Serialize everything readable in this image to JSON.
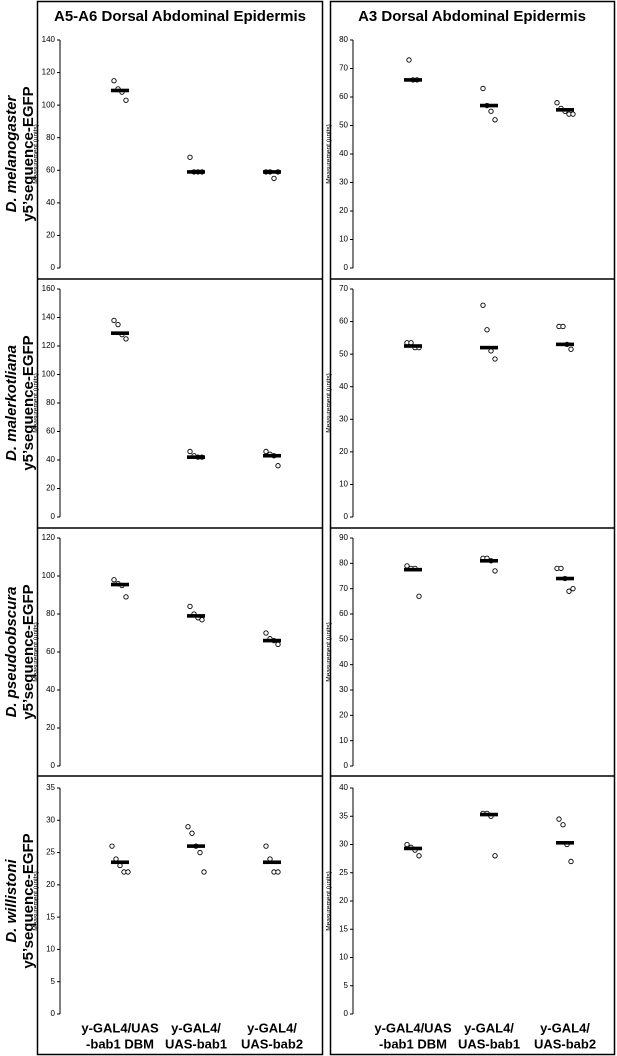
{
  "columns": [
    "A5-A6 Dorsal Abdominal Epidermis",
    "A3 Dorsal Abdominal Epidermis"
  ],
  "rows": [
    {
      "species": "D. melanogaster",
      "construct": "y5’sequence-EGFP"
    },
    {
      "species": "D. malerkotliana",
      "construct": "y5’sequence-EGFP"
    },
    {
      "species": "D. pseudoobscura",
      "construct": "y5’sequence-EGFP"
    },
    {
      "species": "D. willistoni",
      "construct": "y5’sequence-EGFP"
    }
  ],
  "chart_data": [
    {
      "type": "dot",
      "ylabel": "Measurement (units)",
      "ylim": [
        0,
        140
      ],
      "yticks": [
        0,
        20,
        40,
        60,
        80,
        100,
        120,
        140
      ],
      "groups": [
        {
          "points": [
            115,
            110,
            108,
            103
          ],
          "mean": 109
        },
        {
          "points": [
            68,
            59,
            59,
            59
          ],
          "mean": 59
        },
        {
          "points": [
            59,
            59,
            55,
            59
          ],
          "mean": 59
        }
      ]
    },
    {
      "type": "dot",
      "ylabel": "Measurement (units)",
      "ylim": [
        0,
        80
      ],
      "yticks": [
        0,
        10,
        20,
        30,
        40,
        50,
        60,
        70,
        80
      ],
      "groups": [
        {
          "points": [
            73,
            66,
            66
          ],
          "mean": 66
        },
        {
          "points": [
            63,
            57,
            55,
            52
          ],
          "mean": 57
        },
        {
          "points": [
            58,
            56,
            55,
            54,
            54
          ],
          "mean": 55.5
        }
      ]
    },
    {
      "type": "dot",
      "ylabel": "Measurement (units)",
      "ylim": [
        0,
        160
      ],
      "yticks": [
        0,
        20,
        40,
        60,
        80,
        100,
        120,
        140,
        160
      ],
      "groups": [
        {
          "points": [
            138,
            135,
            128,
            125
          ],
          "mean": 129
        },
        {
          "points": [
            46,
            43,
            42,
            42
          ],
          "mean": 42
        },
        {
          "points": [
            46,
            44,
            43,
            36
          ],
          "mean": 43
        }
      ]
    },
    {
      "type": "dot",
      "ylabel": "Measurement (units)",
      "ylim": [
        0,
        70
      ],
      "yticks": [
        0,
        10,
        20,
        30,
        40,
        50,
        60,
        70
      ],
      "groups": [
        {
          "points": [
            53.5,
            53.5,
            52,
            52
          ],
          "mean": 52.5
        },
        {
          "points": [
            65,
            57.5,
            51,
            48.5
          ],
          "mean": 52
        },
        {
          "points": [
            58.5,
            58.5,
            53,
            51.5
          ],
          "mean": 53
        }
      ]
    },
    {
      "type": "dot",
      "ylabel": "Measurement (units)",
      "ylim": [
        0,
        120
      ],
      "yticks": [
        0,
        20,
        40,
        60,
        80,
        100,
        120
      ],
      "groups": [
        {
          "points": [
            98,
            96,
            95,
            89
          ],
          "mean": 95.5
        },
        {
          "points": [
            84,
            80,
            78,
            77
          ],
          "mean": 79
        },
        {
          "points": [
            70,
            67,
            66,
            64
          ],
          "mean": 66
        }
      ]
    },
    {
      "type": "dot",
      "ylabel": "Measurement (units)",
      "ylim": [
        0,
        90
      ],
      "yticks": [
        0,
        10,
        20,
        30,
        40,
        50,
        60,
        70,
        80,
        90
      ],
      "groups": [
        {
          "points": [
            79,
            78,
            78,
            67
          ],
          "mean": 77.5
        },
        {
          "points": [
            82,
            82,
            81,
            77
          ],
          "mean": 81
        },
        {
          "points": [
            78,
            78,
            74,
            69,
            70
          ],
          "mean": 74
        }
      ]
    },
    {
      "type": "dot",
      "ylabel": "Measurement (units)",
      "ylim": [
        0,
        35
      ],
      "yticks": [
        0,
        5,
        10,
        15,
        20,
        25,
        30,
        35
      ],
      "categories": [
        [
          "y-GAL4/UAS",
          "-bab1 DBM"
        ],
        [
          "y-GAL4/",
          "UAS-bab1"
        ],
        [
          "y-GAL4/",
          "UAS-bab2"
        ]
      ],
      "groups": [
        {
          "points": [
            26,
            24,
            23,
            22,
            22
          ],
          "mean": 23.5
        },
        {
          "points": [
            29,
            28,
            26,
            25,
            22
          ],
          "mean": 26
        },
        {
          "points": [
            26,
            24,
            22,
            22
          ],
          "mean": 23.5
        }
      ]
    },
    {
      "type": "dot",
      "ylabel": "Measurement (units)",
      "ylim": [
        0,
        40
      ],
      "yticks": [
        0,
        5,
        10,
        15,
        20,
        25,
        30,
        35,
        40
      ],
      "categories": [
        [
          "y-GAL4/UAS",
          "-bab1 DBM"
        ],
        [
          "y-GAL4/",
          "UAS-bab1"
        ],
        [
          "y-GAL4/",
          "UAS-bab2"
        ]
      ],
      "groups": [
        {
          "points": [
            30,
            29.5,
            29,
            28
          ],
          "mean": 29.3
        },
        {
          "points": [
            35.5,
            35.5,
            35,
            28
          ],
          "mean": 35.3
        },
        {
          "points": [
            34.5,
            33.5,
            30,
            27
          ],
          "mean": 30.3
        }
      ]
    }
  ]
}
